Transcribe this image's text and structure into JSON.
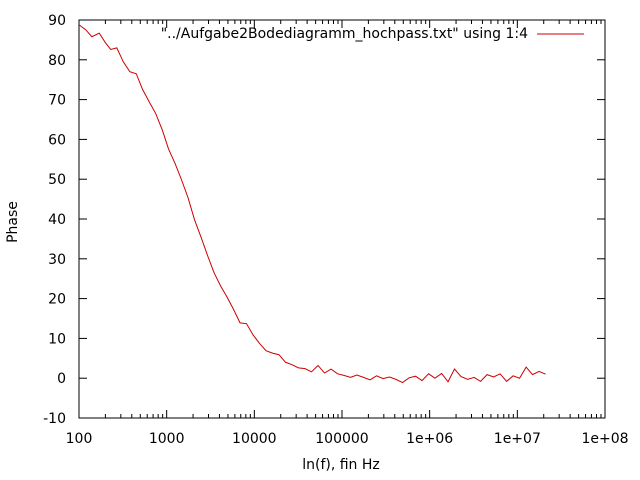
{
  "chart_data": {
    "type": "line",
    "xlabel": "ln(f), fin Hz",
    "ylabel": "Phase",
    "x_scale": "log",
    "xlim": [
      100,
      100000000
    ],
    "ylim": [
      -10,
      90
    ],
    "grid": false,
    "legend_position": "top-right",
    "x_tick_labels": [
      "100",
      "1000",
      "10000",
      "100000",
      "1e+06",
      "1e+07",
      "1e+08"
    ],
    "x_tick_values": [
      100,
      1000,
      10000,
      100000,
      1000000,
      10000000,
      100000000
    ],
    "y_tick_values": [
      -10,
      0,
      10,
      20,
      30,
      40,
      50,
      60,
      70,
      80,
      90
    ],
    "series": [
      {
        "name": "\"../Aufgabe2Bodediagramm_hochpass.txt\" using 1:4",
        "color": "#cc0000",
        "x": [
          100,
          120,
          140,
          170,
          200,
          230,
          270,
          320,
          380,
          450,
          530,
          630,
          750,
          890,
          1050,
          1250,
          1480,
          1750,
          2080,
          2470,
          2930,
          3470,
          4120,
          4880,
          5790,
          6870,
          8150,
          9660,
          11500,
          13600,
          16100,
          19100,
          22700,
          26900,
          31900,
          37900,
          44900,
          53300,
          63200,
          75000,
          89000,
          105000,
          125000,
          148000,
          176000,
          209000,
          248000,
          294000,
          348000,
          413000,
          490000,
          582000,
          690000,
          818000,
          971000,
          1150000,
          1370000,
          1620000,
          1920000,
          2280000,
          2710000,
          3210000,
          3810000,
          4520000,
          5360000,
          6360000,
          7540000,
          8950000,
          10600000,
          12600000,
          14900000,
          17700000,
          21000000
        ],
        "y": [
          88.8,
          87.5,
          85.8,
          86.7,
          84.3,
          82.6,
          83.0,
          79.5,
          77.0,
          76.5,
          72.6,
          69.5,
          66.5,
          62.4,
          57.6,
          53.9,
          49.8,
          45.4,
          39.8,
          35.4,
          30.8,
          26.5,
          23.2,
          20.4,
          17.3,
          13.9,
          13.7,
          10.9,
          8.7,
          6.9,
          6.3,
          5.9,
          4.0,
          3.4,
          2.6,
          2.4,
          1.6,
          3.2,
          1.3,
          2.3,
          1.1,
          0.7,
          0.2,
          0.8,
          0.2,
          -0.4,
          0.6,
          -0.1,
          0.3,
          -0.3,
          -1.1,
          0.1,
          0.5,
          -0.6,
          1.1,
          0.0,
          1.2,
          -0.9,
          2.3,
          0.4,
          -0.3,
          0.2,
          -0.8,
          0.9,
          0.3,
          1.1,
          -0.8,
          0.6,
          0.0,
          2.8,
          0.9,
          1.7,
          1.0
        ]
      }
    ]
  }
}
